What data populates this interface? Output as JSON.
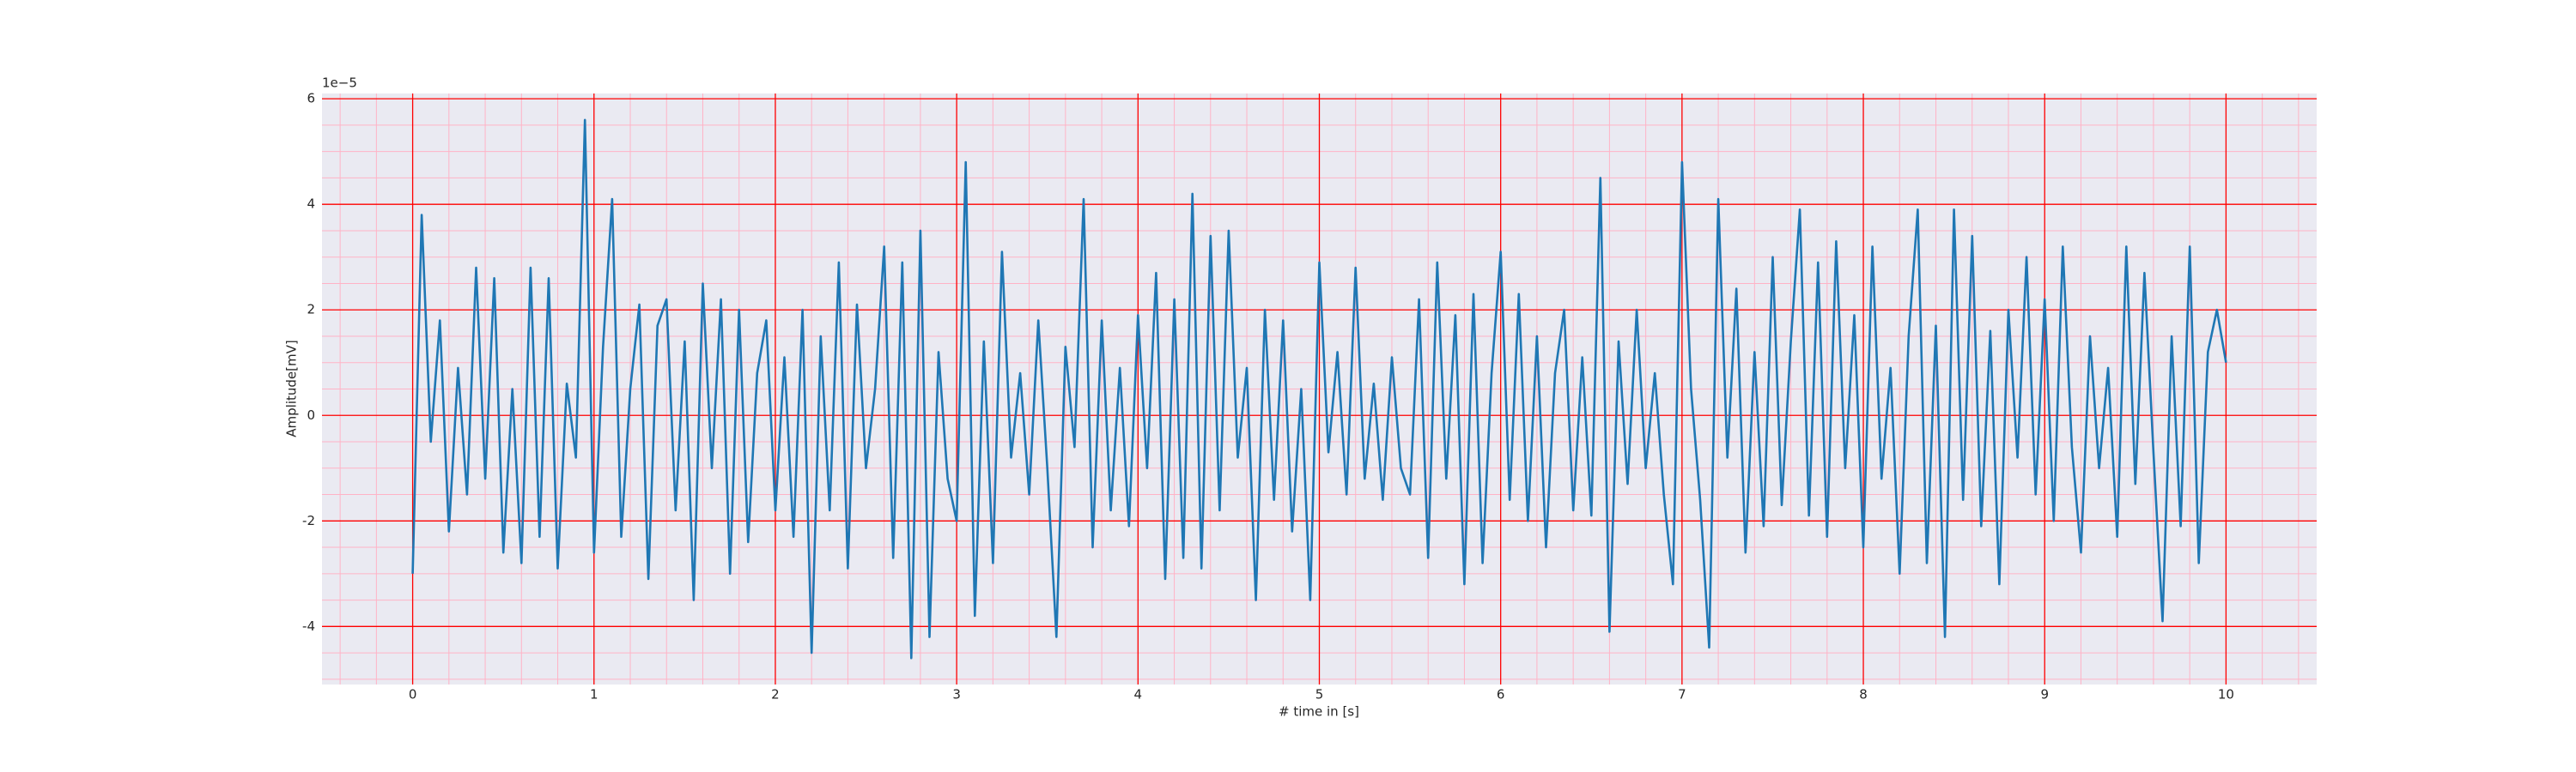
{
  "chart_data": {
    "type": "line",
    "xlabel": "# time in [s]",
    "ylabel": "Amplitude[mV]",
    "y_offset_label": "1e−5",
    "xlim": [
      -0.5,
      10.5
    ],
    "ylim": [
      -5.1,
      6.1
    ],
    "xticks": [
      0,
      1,
      2,
      3,
      4,
      5,
      6,
      7,
      8,
      9,
      10
    ],
    "yticks": [
      -4,
      -2,
      0,
      2,
      4,
      6
    ],
    "xminorticks": [
      -0.4,
      -0.2,
      0.2,
      0.4,
      0.6,
      0.8,
      1.2,
      1.4,
      1.6,
      1.8,
      2.2,
      2.4,
      2.6,
      2.8,
      3.2,
      3.4,
      3.6,
      3.8,
      4.2,
      4.4,
      4.6,
      4.8,
      5.2,
      5.4,
      5.6,
      5.8,
      6.2,
      6.4,
      6.6,
      6.8,
      7.2,
      7.4,
      7.6,
      7.8,
      8.2,
      8.4,
      8.6,
      8.8,
      9.2,
      9.4,
      9.6,
      9.8,
      10.2,
      10.4
    ],
    "yminorticks": [
      -5,
      -4.5,
      -3.5,
      -3,
      -2.5,
      -1.5,
      -1,
      -0.5,
      0.5,
      1,
      1.5,
      2.5,
      3,
      3.5,
      4.5,
      5,
      5.5
    ],
    "grid": true,
    "grid_color": "#ff0000",
    "minor_grid_color": "#ffb3c6",
    "face_color": "#eaeaf2",
    "series": [
      {
        "color": "#1f77b4",
        "x": [
          0,
          0.05,
          0.1,
          0.15,
          0.2,
          0.25,
          0.3,
          0.35,
          0.4,
          0.45,
          0.5,
          0.55,
          0.6,
          0.65,
          0.7,
          0.75,
          0.8,
          0.85,
          0.9,
          0.95,
          1,
          1.05,
          1.1,
          1.15,
          1.2,
          1.25,
          1.3,
          1.35,
          1.4,
          1.45,
          1.5,
          1.55,
          1.6,
          1.65,
          1.7,
          1.75,
          1.8,
          1.85,
          1.9,
          1.95,
          2,
          2.05,
          2.1,
          2.15,
          2.2,
          2.25,
          2.3,
          2.35,
          2.4,
          2.45,
          2.5,
          2.55,
          2.6,
          2.65,
          2.7,
          2.75,
          2.8,
          2.85,
          2.9,
          2.95,
          3,
          3.05,
          3.1,
          3.15,
          3.2,
          3.25,
          3.3,
          3.35,
          3.4,
          3.45,
          3.5,
          3.55,
          3.6,
          3.65,
          3.7,
          3.75,
          3.8,
          3.85,
          3.9,
          3.95,
          4,
          4.05,
          4.1,
          4.15,
          4.2,
          4.25,
          4.3,
          4.35,
          4.4,
          4.45,
          4.5,
          4.55,
          4.6,
          4.65,
          4.7,
          4.75,
          4.8,
          4.85,
          4.9,
          4.95,
          5,
          5.05,
          5.1,
          5.15,
          5.2,
          5.25,
          5.3,
          5.35,
          5.4,
          5.45,
          5.5,
          5.55,
          5.6,
          5.65,
          5.7,
          5.75,
          5.8,
          5.85,
          5.9,
          5.95,
          6,
          6.05,
          6.1,
          6.15,
          6.2,
          6.25,
          6.3,
          6.35,
          6.4,
          6.45,
          6.5,
          6.55,
          6.6,
          6.65,
          6.7,
          6.75,
          6.8,
          6.85,
          6.9,
          6.95,
          7,
          7.05,
          7.1,
          7.15,
          7.2,
          7.25,
          7.3,
          7.35,
          7.4,
          7.45,
          7.5,
          7.55,
          7.6,
          7.65,
          7.7,
          7.75,
          7.8,
          7.85,
          7.9,
          7.95,
          8,
          8.05,
          8.1,
          8.15,
          8.2,
          8.25,
          8.3,
          8.35,
          8.4,
          8.45,
          8.5,
          8.55,
          8.6,
          8.65,
          8.7,
          8.75,
          8.8,
          8.85,
          8.9,
          8.95,
          9,
          9.05,
          9.1,
          9.15,
          9.2,
          9.25,
          9.3,
          9.35,
          9.4,
          9.45,
          9.5,
          9.55,
          9.6,
          9.65,
          9.7,
          9.75,
          9.8,
          9.85,
          9.9,
          9.95,
          10
        ],
        "values": [
          -3.0,
          3.8,
          -0.5,
          1.8,
          -2.2,
          0.9,
          -1.5,
          2.8,
          -1.2,
          2.6,
          -2.6,
          0.5,
          -2.8,
          2.8,
          -2.3,
          2.6,
          -2.9,
          0.6,
          -0.8,
          5.6,
          -2.6,
          1.3,
          4.1,
          -2.3,
          0.5,
          2.1,
          -3.1,
          1.7,
          2.2,
          -1.8,
          1.4,
          -3.5,
          2.5,
          -1.0,
          2.2,
          -3.0,
          2.0,
          -2.4,
          0.8,
          1.8,
          -1.8,
          1.1,
          -2.3,
          2.0,
          -4.5,
          1.5,
          -1.8,
          2.9,
          -2.9,
          2.1,
          -1.0,
          0.5,
          3.2,
          -2.7,
          2.9,
          -4.6,
          3.5,
          -4.2,
          1.2,
          -1.2,
          -2.0,
          4.8,
          -3.8,
          1.4,
          -2.8,
          3.1,
          -0.8,
          0.8,
          -1.5,
          1.8,
          -1.0,
          -4.2,
          1.3,
          -0.6,
          4.1,
          -2.5,
          1.8,
          -1.8,
          0.9,
          -2.1,
          1.9,
          -1.0,
          2.7,
          -3.1,
          2.2,
          -2.7,
          4.2,
          -2.9,
          3.4,
          -1.8,
          3.5,
          -0.8,
          0.9,
          -3.5,
          2.0,
          -1.6,
          1.8,
          -2.2,
          0.5,
          -3.5,
          2.9,
          -0.7,
          1.2,
          -1.5,
          2.8,
          -1.2,
          0.6,
          -1.6,
          1.1,
          -1.0,
          -1.5,
          2.2,
          -2.7,
          2.9,
          -1.2,
          1.9,
          -3.2,
          2.3,
          -2.8,
          0.8,
          3.1,
          -1.6,
          2.3,
          -2.0,
          1.5,
          -2.5,
          0.8,
          2.0,
          -1.8,
          1.1,
          -1.9,
          4.5,
          -4.1,
          1.4,
          -1.3,
          2.0,
          -1.0,
          0.8,
          -1.5,
          -3.2,
          4.8,
          0.5,
          -1.6,
          -4.4,
          4.1,
          -0.8,
          2.4,
          -2.6,
          1.2,
          -2.1,
          3.0,
          -1.7,
          1.4,
          3.9,
          -1.9,
          2.9,
          -2.3,
          3.3,
          -1.0,
          1.9,
          -2.5,
          3.2,
          -1.2,
          0.9,
          -3.0,
          1.5,
          3.9,
          -2.8,
          1.7,
          -4.2,
          3.9,
          -1.6,
          3.4,
          -2.1,
          1.6,
          -3.2,
          2.0,
          -0.8,
          3.0,
          -1.5,
          2.2,
          -2.0,
          3.2,
          -0.6,
          -2.6,
          1.5,
          -1.0,
          0.9,
          -2.3,
          3.2,
          -1.3,
          2.7,
          -0.7,
          -3.9,
          1.5,
          -2.1,
          3.2,
          -2.8,
          1.2,
          2.0,
          1.0
        ]
      }
    ]
  }
}
